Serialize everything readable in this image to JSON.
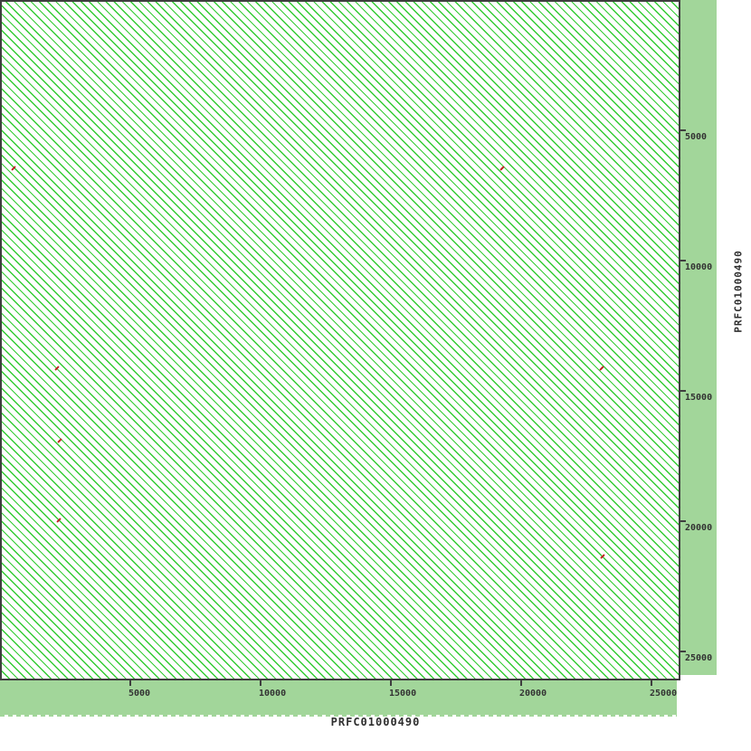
{
  "axes": {
    "x": {
      "title": "PRFC01000490"
    },
    "y": {
      "title": "PRFC01000490"
    }
  },
  "colors": {
    "band": "#a2d69a",
    "forward_match": "#33cc33",
    "reverse_match": "#c02020",
    "frame": "#3f3f3f",
    "page_bg": "#ffffff"
  },
  "chart_data": {
    "type": "scatter",
    "subtype": "dotplot-self-alignment",
    "title": "",
    "xlabel": "PRFC01000490",
    "ylabel": "PRFC01000490",
    "xlim": [
      0,
      26050
    ],
    "ylim": [
      0,
      26050
    ],
    "x_ticks": [
      5000,
      10000,
      15000,
      20000,
      25000
    ],
    "y_ticks": [
      5000,
      10000,
      15000,
      20000,
      25000
    ],
    "grid": false,
    "legend": false,
    "forward_matches": {
      "description": "dense parallel forward-strand diagonals (tandem repeat array) filling the whole plot",
      "diagonal_period_bp": 225,
      "color": "#33cc33"
    },
    "reverse_matches": {
      "color": "#c02020",
      "points": [
        {
          "x": 520,
          "y": 6460
        },
        {
          "x": 19270,
          "y": 6460
        },
        {
          "x": 2190,
          "y": 14130
        },
        {
          "x": 23090,
          "y": 14130
        },
        {
          "x": 2290,
          "y": 16910
        },
        {
          "x": 2260,
          "y": 19960
        },
        {
          "x": 23120,
          "y": 21350
        }
      ]
    }
  }
}
